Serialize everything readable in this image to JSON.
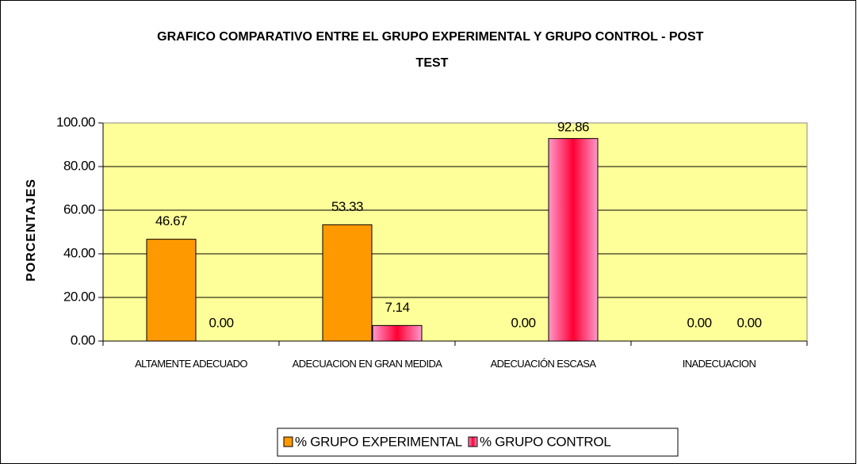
{
  "chart_data": {
    "type": "bar",
    "title": "GRAFICO COMPARATIVO ENTRE EL GRUPO EXPERIMENTAL Y GRUPO CONTROL - POST TEST",
    "y_label": "PORCENTAJES",
    "categories": [
      "ALTAMENTE ADECUADO",
      "ADECUACION EN GRAN MEDIDA",
      "ADECUACIÓN ESCASA",
      "INADECUACION"
    ],
    "series": [
      {
        "name": "% GRUPO EXPERIMENTAL",
        "color": "#ff9900",
        "values": [
          46.67,
          53.33,
          0,
          0
        ],
        "value_labels": [
          "46.67",
          "53.33",
          "0.00",
          "0.00"
        ]
      },
      {
        "name": "% GRUPO CONTROL",
        "color": "#ff99cc",
        "values": [
          0,
          7.14,
          92.86,
          0
        ],
        "value_labels": [
          "0.00",
          "7.14",
          "92.86",
          "0.00"
        ]
      }
    ],
    "ylim": [
      0,
      100
    ],
    "yticks": [
      {
        "value": 0,
        "label": "0.00"
      },
      {
        "value": 20,
        "label": "20.00"
      },
      {
        "value": 40,
        "label": "40.00"
      },
      {
        "value": 60,
        "label": "60.00"
      },
      {
        "value": 80,
        "label": "80.00"
      },
      {
        "value": 100,
        "label": "100.00"
      }
    ],
    "grid": true,
    "plot_background": "#ffff99",
    "legend": "bottom"
  }
}
